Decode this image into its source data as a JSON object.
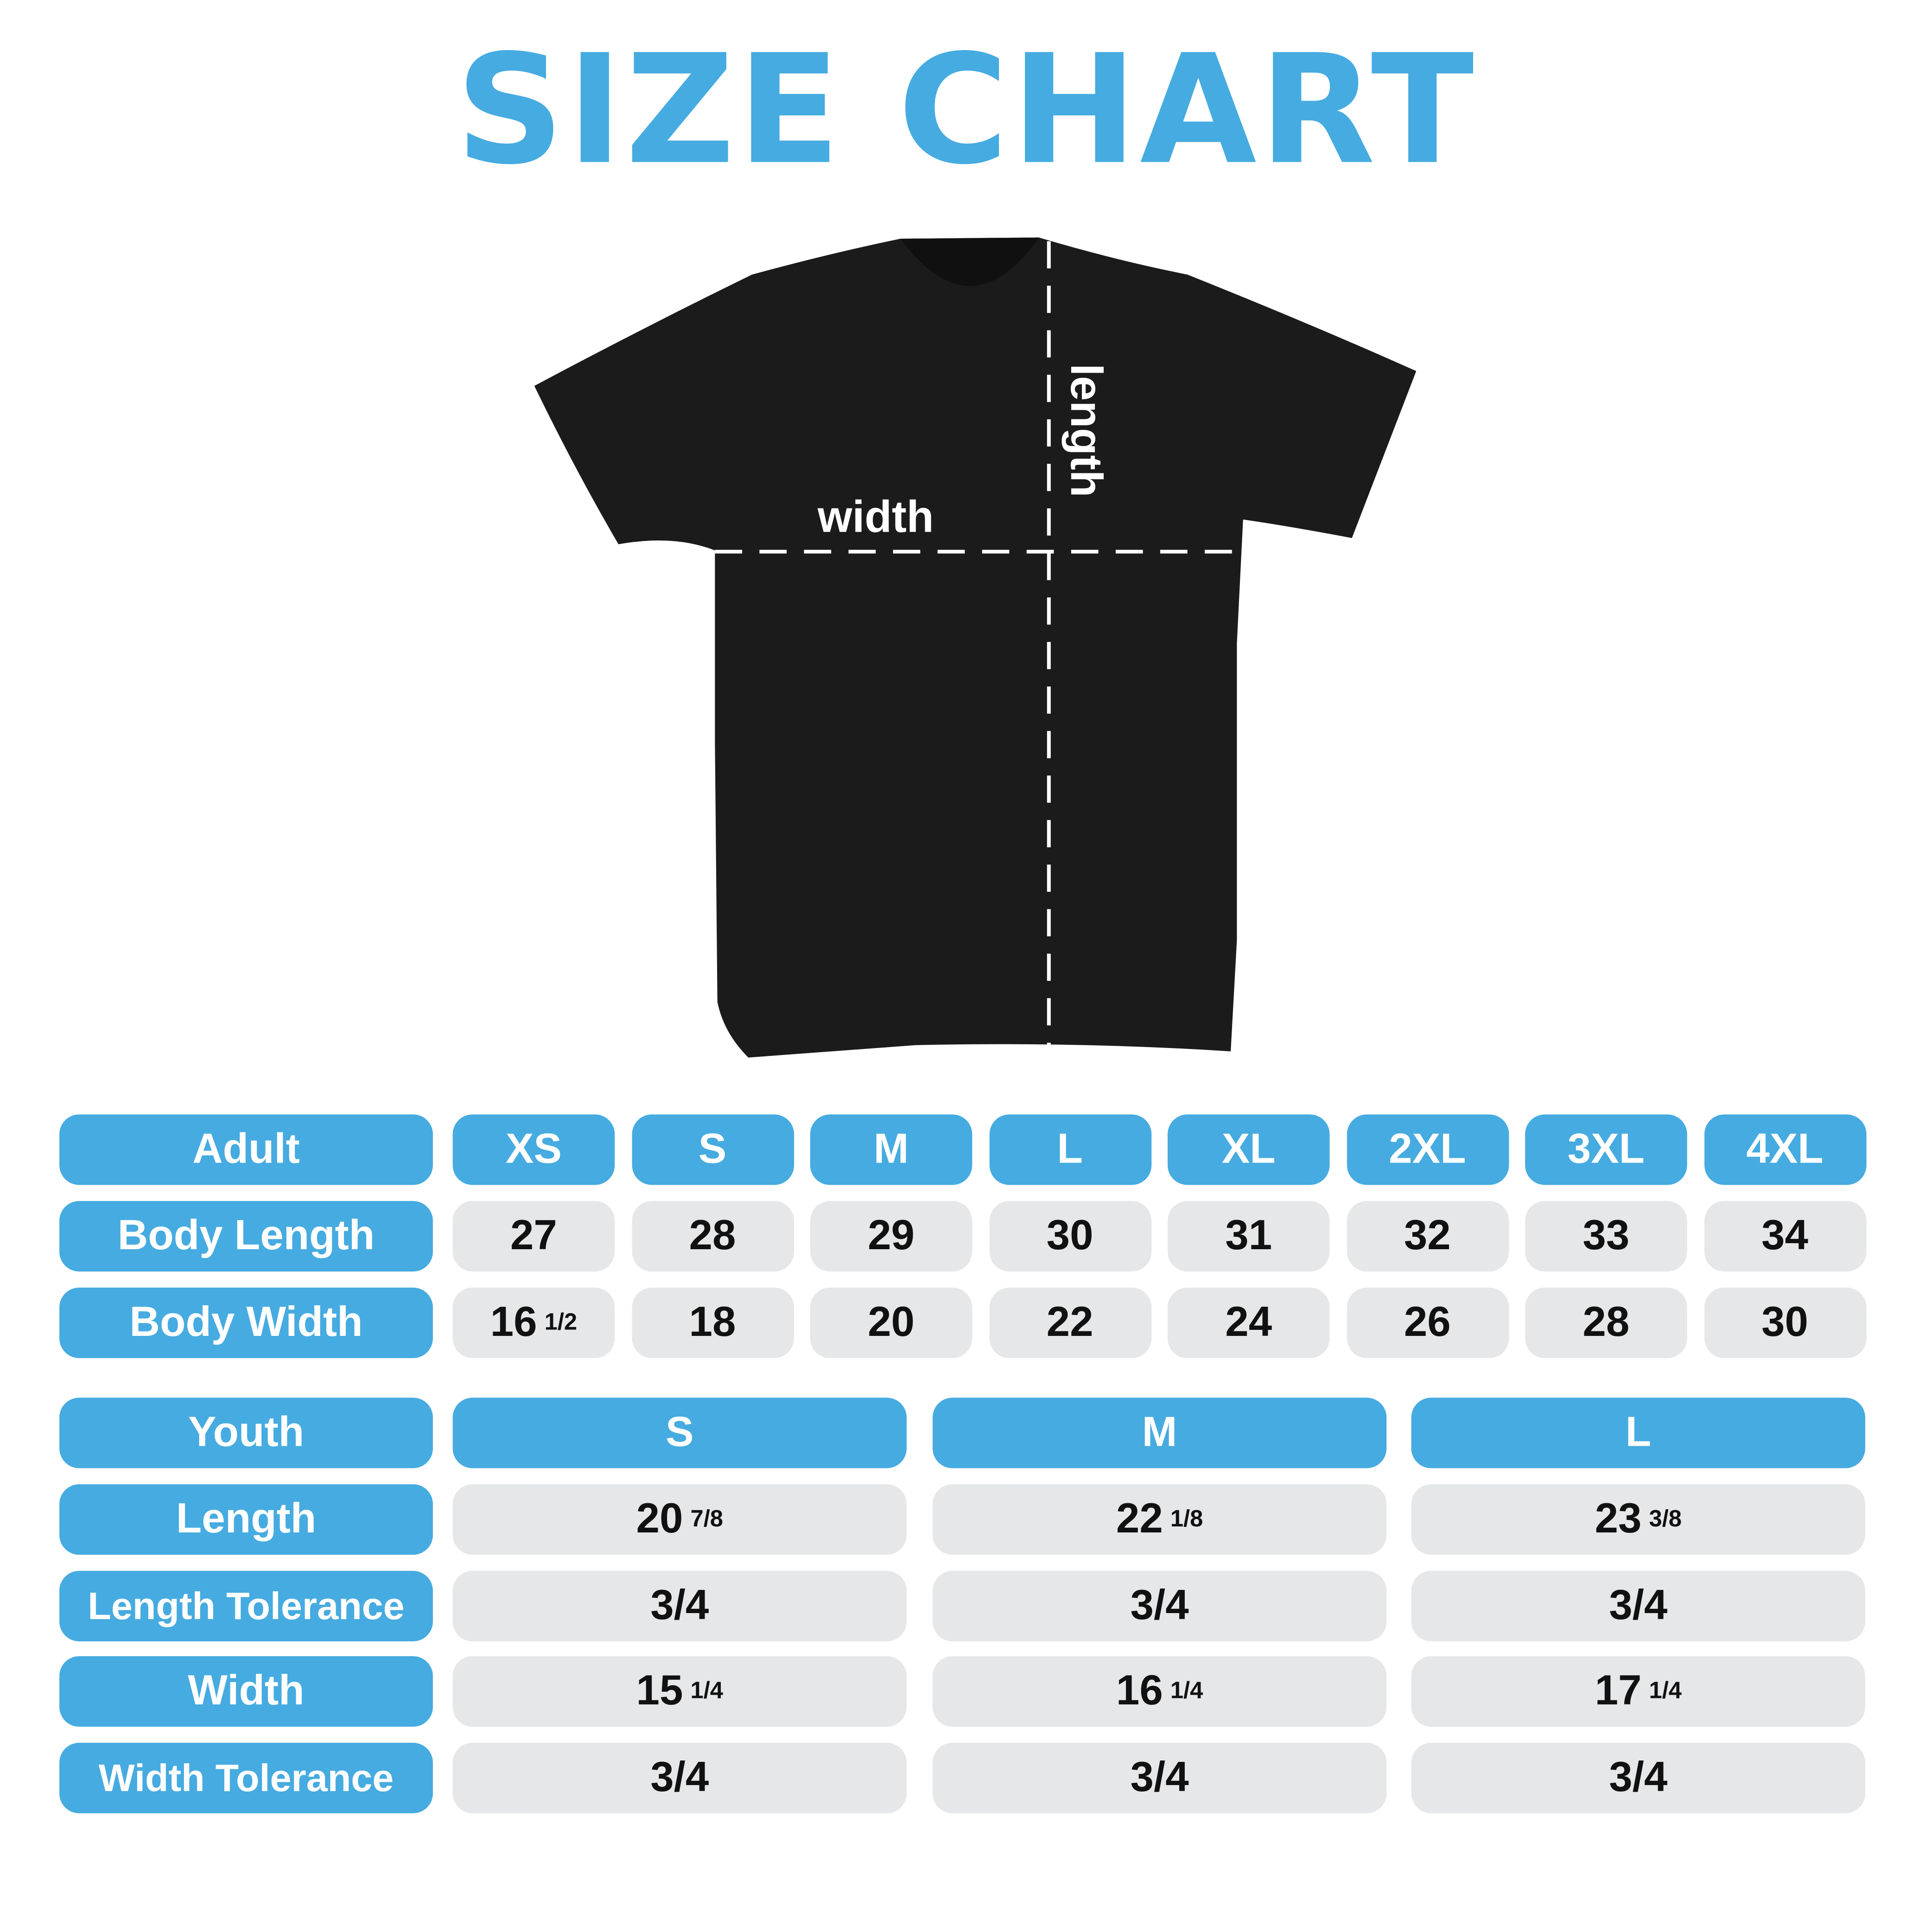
{
  "title": "SIZE CHART",
  "diagram": {
    "width_label": "width",
    "length_label": "length",
    "shirt_color": "#1b1b1b"
  },
  "colors": {
    "accent": "#46abe0",
    "cell": "#e6e7e8"
  },
  "adult": {
    "header": "Adult",
    "sizes": [
      "XS",
      "S",
      "M",
      "L",
      "XL",
      "2XL",
      "3XL",
      "4XL"
    ],
    "rows": [
      {
        "label": "Body Length",
        "values": [
          {
            "whole": "27",
            "frac": ""
          },
          {
            "whole": "28",
            "frac": ""
          },
          {
            "whole": "29",
            "frac": ""
          },
          {
            "whole": "30",
            "frac": ""
          },
          {
            "whole": "31",
            "frac": ""
          },
          {
            "whole": "32",
            "frac": ""
          },
          {
            "whole": "33",
            "frac": ""
          },
          {
            "whole": "34",
            "frac": ""
          }
        ]
      },
      {
        "label": "Body Width",
        "values": [
          {
            "whole": "16",
            "frac": "1/2"
          },
          {
            "whole": "18",
            "frac": ""
          },
          {
            "whole": "20",
            "frac": ""
          },
          {
            "whole": "22",
            "frac": ""
          },
          {
            "whole": "24",
            "frac": ""
          },
          {
            "whole": "26",
            "frac": ""
          },
          {
            "whole": "28",
            "frac": ""
          },
          {
            "whole": "30",
            "frac": ""
          }
        ]
      }
    ]
  },
  "youth": {
    "header": "Youth",
    "sizes": [
      "S",
      "M",
      "L"
    ],
    "rows": [
      {
        "label": "Length",
        "values": [
          {
            "whole": "20",
            "frac": "7/8"
          },
          {
            "whole": "22",
            "frac": "1/8"
          },
          {
            "whole": "23",
            "frac": "3/8"
          }
        ]
      },
      {
        "label": "Length Tolerance",
        "values": [
          {
            "whole": "3/4",
            "frac": ""
          },
          {
            "whole": "3/4",
            "frac": ""
          },
          {
            "whole": "3/4",
            "frac": ""
          }
        ]
      },
      {
        "label": "Width",
        "values": [
          {
            "whole": "15",
            "frac": "1/4"
          },
          {
            "whole": "16",
            "frac": "1/4"
          },
          {
            "whole": "17",
            "frac": "1/4"
          }
        ]
      },
      {
        "label": "Width Tolerance",
        "values": [
          {
            "whole": "3/4",
            "frac": ""
          },
          {
            "whole": "3/4",
            "frac": ""
          },
          {
            "whole": "3/4",
            "frac": ""
          }
        ]
      }
    ]
  }
}
